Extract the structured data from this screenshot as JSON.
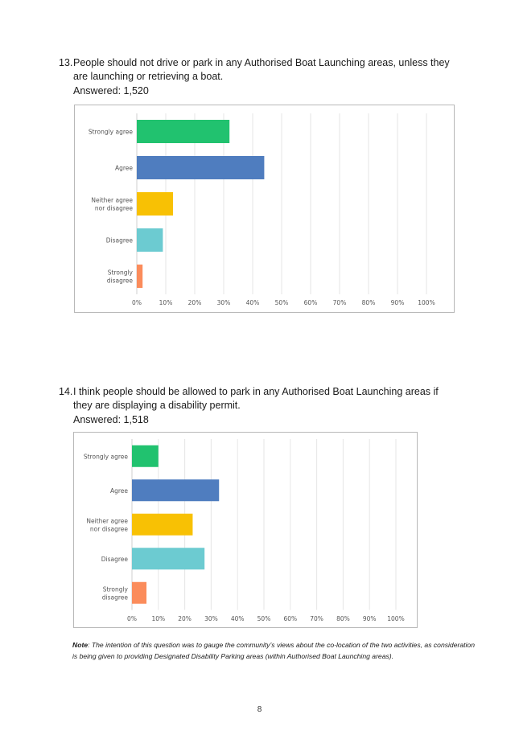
{
  "q13": {
    "number": "13.",
    "text": "People should not drive or park in any Authorised Boat Launching areas, unless they are launching or retrieving a boat.",
    "answered": "Answered: 1,520"
  },
  "q14": {
    "number": "14.",
    "text": "I think people should be allowed to park in any Authorised Boat Launching areas if they are displaying a disability permit.",
    "answered": "Answered: 1,518"
  },
  "note": {
    "label": "Note",
    "text": ": The intention of this question was to gauge the community’s views about the co-location of the two activities, as consideration is being given to providing Designated Disability Parking areas (within Authorised Boat Launching areas)."
  },
  "page_number": "8",
  "colors": {
    "strongly_agree": "#21c26f",
    "agree": "#4f7dbf",
    "neither": "#f8c104",
    "disagree": "#6ccbd1",
    "strongly_disagree": "#fb8c5b",
    "gridline": "#e6e6e6"
  },
  "chart_data": [
    {
      "type": "bar",
      "orientation": "horizontal",
      "categories": [
        "Strongly agree",
        "Agree",
        "Neither agree\nnor disagree",
        "Disagree",
        "Strongly\ndisagree"
      ],
      "values": [
        32,
        44,
        12.5,
        9,
        2
      ],
      "xlim": [
        0,
        100
      ],
      "xticks": [
        "0%",
        "10%",
        "20%",
        "30%",
        "40%",
        "50%",
        "60%",
        "70%",
        "80%",
        "90%",
        "100%"
      ],
      "grid": true
    },
    {
      "type": "bar",
      "orientation": "horizontal",
      "categories": [
        "Strongly agree",
        "Agree",
        "Neither agree\nnor disagree",
        "Disagree",
        "Strongly\ndisagree"
      ],
      "values": [
        10,
        33,
        23,
        27.5,
        5.5
      ],
      "xlim": [
        0,
        100
      ],
      "xticks": [
        "0%",
        "10%",
        "20%",
        "30%",
        "40%",
        "50%",
        "60%",
        "70%",
        "80%",
        "90%",
        "100%"
      ],
      "grid": true
    }
  ]
}
